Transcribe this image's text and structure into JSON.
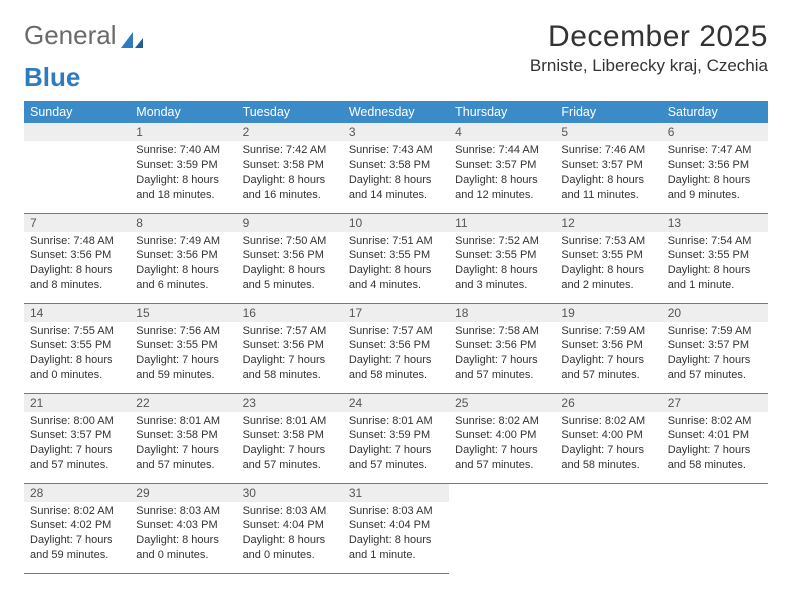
{
  "logo": {
    "text1": "General",
    "text2": "Blue"
  },
  "title": "December 2025",
  "location": "Brniste, Liberecky kraj, Czechia",
  "colors": {
    "header_bg": "#3b8bc9",
    "header_fg": "#ffffff",
    "daynum_bg": "#eeeeee",
    "border": "#3b8bc9",
    "logo_blue": "#2f7bbf",
    "logo_gray": "#6a6a6a",
    "text": "#333333",
    "page_bg": "#ffffff"
  },
  "day_headers": [
    "Sunday",
    "Monday",
    "Tuesday",
    "Wednesday",
    "Thursday",
    "Friday",
    "Saturday"
  ],
  "weeks": [
    [
      null,
      {
        "n": "1",
        "sr": "7:40 AM",
        "ss": "3:59 PM",
        "dl": "8 hours and 18 minutes."
      },
      {
        "n": "2",
        "sr": "7:42 AM",
        "ss": "3:58 PM",
        "dl": "8 hours and 16 minutes."
      },
      {
        "n": "3",
        "sr": "7:43 AM",
        "ss": "3:58 PM",
        "dl": "8 hours and 14 minutes."
      },
      {
        "n": "4",
        "sr": "7:44 AM",
        "ss": "3:57 PM",
        "dl": "8 hours and 12 minutes."
      },
      {
        "n": "5",
        "sr": "7:46 AM",
        "ss": "3:57 PM",
        "dl": "8 hours and 11 minutes."
      },
      {
        "n": "6",
        "sr": "7:47 AM",
        "ss": "3:56 PM",
        "dl": "8 hours and 9 minutes."
      }
    ],
    [
      {
        "n": "7",
        "sr": "7:48 AM",
        "ss": "3:56 PM",
        "dl": "8 hours and 8 minutes."
      },
      {
        "n": "8",
        "sr": "7:49 AM",
        "ss": "3:56 PM",
        "dl": "8 hours and 6 minutes."
      },
      {
        "n": "9",
        "sr": "7:50 AM",
        "ss": "3:56 PM",
        "dl": "8 hours and 5 minutes."
      },
      {
        "n": "10",
        "sr": "7:51 AM",
        "ss": "3:55 PM",
        "dl": "8 hours and 4 minutes."
      },
      {
        "n": "11",
        "sr": "7:52 AM",
        "ss": "3:55 PM",
        "dl": "8 hours and 3 minutes."
      },
      {
        "n": "12",
        "sr": "7:53 AM",
        "ss": "3:55 PM",
        "dl": "8 hours and 2 minutes."
      },
      {
        "n": "13",
        "sr": "7:54 AM",
        "ss": "3:55 PM",
        "dl": "8 hours and 1 minute."
      }
    ],
    [
      {
        "n": "14",
        "sr": "7:55 AM",
        "ss": "3:55 PM",
        "dl": "8 hours and 0 minutes."
      },
      {
        "n": "15",
        "sr": "7:56 AM",
        "ss": "3:55 PM",
        "dl": "7 hours and 59 minutes."
      },
      {
        "n": "16",
        "sr": "7:57 AM",
        "ss": "3:56 PM",
        "dl": "7 hours and 58 minutes."
      },
      {
        "n": "17",
        "sr": "7:57 AM",
        "ss": "3:56 PM",
        "dl": "7 hours and 58 minutes."
      },
      {
        "n": "18",
        "sr": "7:58 AM",
        "ss": "3:56 PM",
        "dl": "7 hours and 57 minutes."
      },
      {
        "n": "19",
        "sr": "7:59 AM",
        "ss": "3:56 PM",
        "dl": "7 hours and 57 minutes."
      },
      {
        "n": "20",
        "sr": "7:59 AM",
        "ss": "3:57 PM",
        "dl": "7 hours and 57 minutes."
      }
    ],
    [
      {
        "n": "21",
        "sr": "8:00 AM",
        "ss": "3:57 PM",
        "dl": "7 hours and 57 minutes."
      },
      {
        "n": "22",
        "sr": "8:01 AM",
        "ss": "3:58 PM",
        "dl": "7 hours and 57 minutes."
      },
      {
        "n": "23",
        "sr": "8:01 AM",
        "ss": "3:58 PM",
        "dl": "7 hours and 57 minutes."
      },
      {
        "n": "24",
        "sr": "8:01 AM",
        "ss": "3:59 PM",
        "dl": "7 hours and 57 minutes."
      },
      {
        "n": "25",
        "sr": "8:02 AM",
        "ss": "4:00 PM",
        "dl": "7 hours and 57 minutes."
      },
      {
        "n": "26",
        "sr": "8:02 AM",
        "ss": "4:00 PM",
        "dl": "7 hours and 58 minutes."
      },
      {
        "n": "27",
        "sr": "8:02 AM",
        "ss": "4:01 PM",
        "dl": "7 hours and 58 minutes."
      }
    ],
    [
      {
        "n": "28",
        "sr": "8:02 AM",
        "ss": "4:02 PM",
        "dl": "7 hours and 59 minutes."
      },
      {
        "n": "29",
        "sr": "8:03 AM",
        "ss": "4:03 PM",
        "dl": "8 hours and 0 minutes."
      },
      {
        "n": "30",
        "sr": "8:03 AM",
        "ss": "4:04 PM",
        "dl": "8 hours and 0 minutes."
      },
      {
        "n": "31",
        "sr": "8:03 AM",
        "ss": "4:04 PM",
        "dl": "8 hours and 1 minute."
      },
      null,
      null,
      null
    ]
  ],
  "labels": {
    "sunrise": "Sunrise: ",
    "sunset": "Sunset: ",
    "daylight": "Daylight: "
  }
}
